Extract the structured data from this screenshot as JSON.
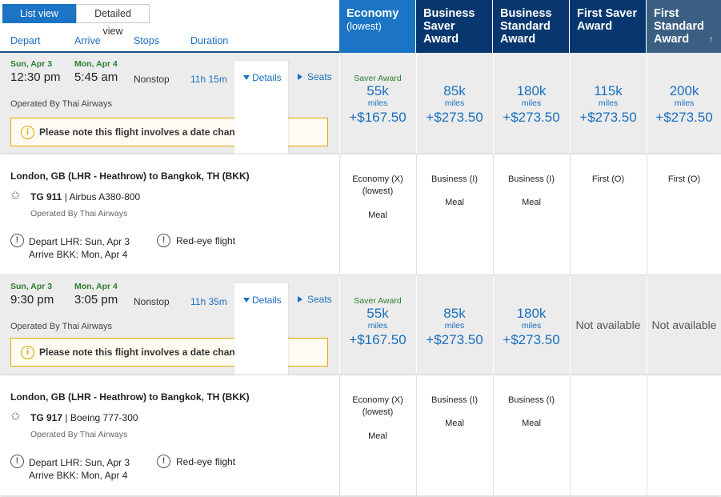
{
  "view_toggle": {
    "list": "List view",
    "detailed": "Detailed view"
  },
  "sort_columns": {
    "depart": "Depart",
    "arrive": "Arrive",
    "stops": "Stops",
    "duration": "Duration"
  },
  "fare_columns": [
    {
      "title": "Economy",
      "sub": "(lowest)"
    },
    {
      "title": "Business Saver Award"
    },
    {
      "title": "Business Standard Award"
    },
    {
      "title": "First Saver Award"
    },
    {
      "title": "First Standard Award",
      "sort_icon": "↑"
    }
  ],
  "flights": [
    {
      "depart_date": "Sun, Apr 3",
      "depart_time": "12:30 pm",
      "arrive_date": "Mon, Apr 4",
      "arrive_time": "5:45 am",
      "stops": "Nonstop",
      "duration": "11h 15m",
      "details": "Details",
      "seats": "Seats",
      "operated_by": "Operated By Thai Airways",
      "notice": "Please note this flight involves a date change.",
      "fares": [
        {
          "saver": "Saver Award",
          "miles": "55k",
          "miles_label": "miles",
          "tax": "+$167.50"
        },
        {
          "miles": "85k",
          "miles_label": "miles",
          "tax": "+$273.50"
        },
        {
          "miles": "180k",
          "miles_label": "miles",
          "tax": "+$273.50"
        },
        {
          "miles": "115k",
          "miles_label": "miles",
          "tax": "+$273.50"
        },
        {
          "miles": "200k",
          "miles_label": "miles",
          "tax": "+$273.50"
        }
      ],
      "segment": {
        "route": "London, GB (LHR - Heathrow) to Bangkok, TH (BKK)",
        "flight_no": "TG 911",
        "aircraft": "Airbus A380-800",
        "operated_by": "Operated By Thai Airways",
        "depart_info": "Depart LHR: Sun, Apr 3",
        "arrive_info": "Arrive BKK: Mon, Apr 4",
        "warning": "Red-eye flight",
        "cabins": [
          {
            "class": "Economy (X)",
            "sub": "(lowest)",
            "meal": "Meal"
          },
          {
            "class": "Business (I)",
            "meal": "Meal"
          },
          {
            "class": "Business (I)",
            "meal": "Meal"
          },
          {
            "class": "First (O)"
          },
          {
            "class": "First (O)"
          }
        ]
      }
    },
    {
      "depart_date": "Sun, Apr 3",
      "depart_time": "9:30 pm",
      "arrive_date": "Mon, Apr 4",
      "arrive_time": "3:05 pm",
      "stops": "Nonstop",
      "duration": "11h 35m",
      "details": "Details",
      "seats": "Seats",
      "operated_by": "Operated By Thai Airways",
      "notice": "Please note this flight involves a date change.",
      "fares": [
        {
          "saver": "Saver Award",
          "miles": "55k",
          "miles_label": "miles",
          "tax": "+$167.50"
        },
        {
          "miles": "85k",
          "miles_label": "miles",
          "tax": "+$273.50"
        },
        {
          "miles": "180k",
          "miles_label": "miles",
          "tax": "+$273.50"
        },
        {
          "na": "Not available"
        },
        {
          "na": "Not available"
        }
      ],
      "segment": {
        "route": "London, GB (LHR - Heathrow) to Bangkok, TH (BKK)",
        "flight_no": "TG 917",
        "aircraft": "Boeing 777-300",
        "operated_by": "Operated By Thai Airways",
        "depart_info": "Depart LHR: Sun, Apr 3",
        "arrive_info": "Arrive BKK: Mon, Apr 4",
        "warning": "Red-eye flight",
        "cabins": [
          {
            "class": "Economy (X)",
            "sub": "(lowest)",
            "meal": "Meal"
          },
          {
            "class": "Business (I)",
            "meal": "Meal"
          },
          {
            "class": "Business (I)",
            "meal": "Meal"
          },
          {},
          {}
        ]
      }
    }
  ]
}
